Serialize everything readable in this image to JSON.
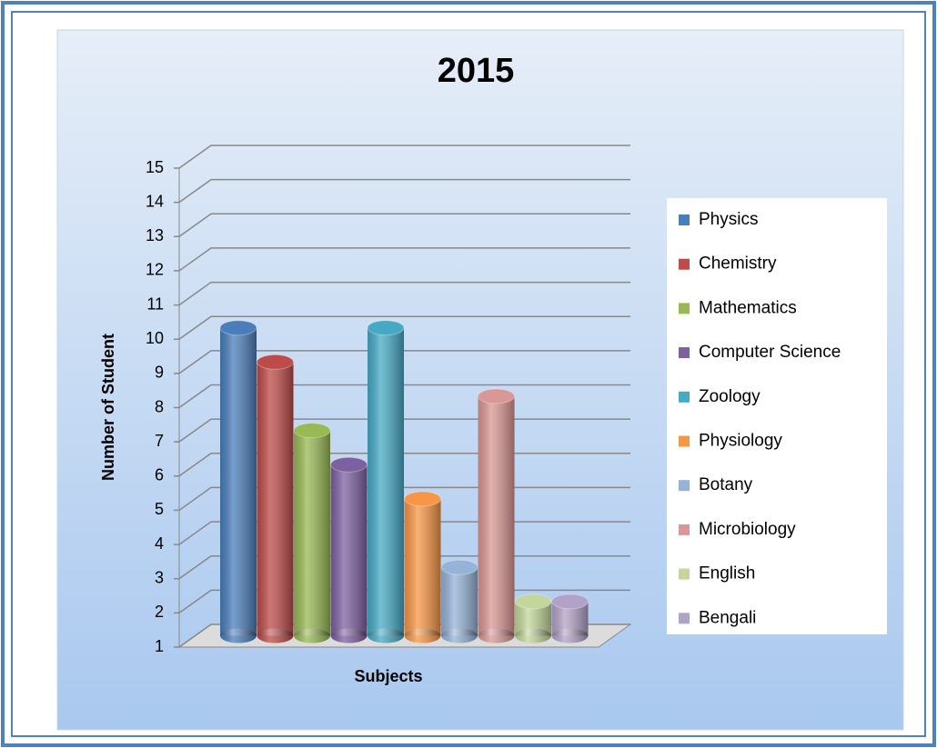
{
  "chart_data": {
    "type": "bar3d",
    "title": "2015",
    "x_label": "Subjects",
    "y_label": "Number of Student",
    "categories": [
      null
    ],
    "series": [
      {
        "name": "Physics",
        "color": "#4a7ebb",
        "values": [
          10
        ]
      },
      {
        "name": "Chemistry",
        "color": "#be4b48",
        "values": [
          9
        ]
      },
      {
        "name": "Mathematics",
        "color": "#98b954",
        "values": [
          7
        ]
      },
      {
        "name": "Computer Science",
        "color": "#7d60a0",
        "values": [
          6
        ]
      },
      {
        "name": "Zoology",
        "color": "#46aac5",
        "values": [
          10
        ]
      },
      {
        "name": "Physiology",
        "color": "#f79646",
        "values": [
          5
        ]
      },
      {
        "name": "Botany",
        "color": "#95b3d7",
        "values": [
          3
        ]
      },
      {
        "name": "Microbiology",
        "color": "#d99795",
        "values": [
          8
        ]
      },
      {
        "name": "English",
        "color": "#c3d69b",
        "values": [
          2
        ]
      },
      {
        "name": "Bengali",
        "color": "#b3a2c7",
        "values": [
          2
        ]
      }
    ],
    "ylim": [
      1,
      15
    ],
    "yticks": [
      1,
      2,
      3,
      4,
      5,
      6,
      7,
      8,
      9,
      10,
      11,
      12,
      13,
      14,
      15
    ],
    "grid": true,
    "legend": "right"
  }
}
